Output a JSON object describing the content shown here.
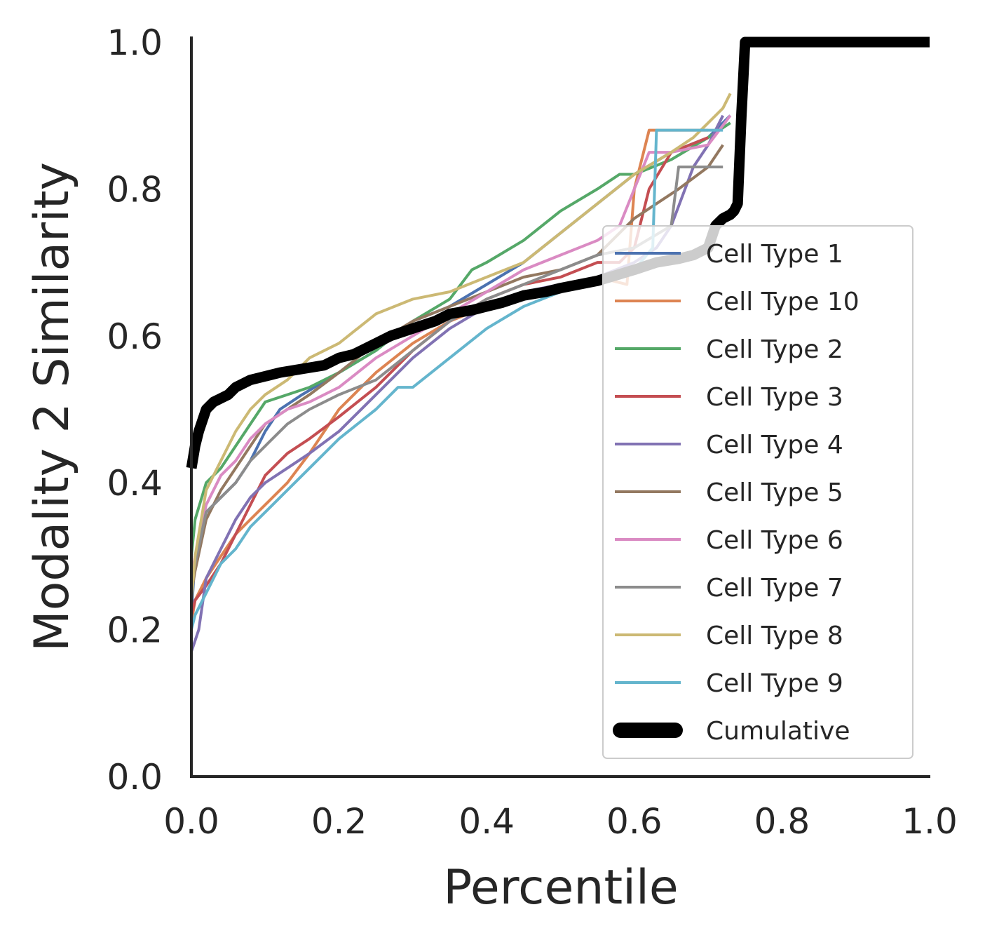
{
  "chart_data": {
    "type": "line",
    "title": "",
    "xlabel": "Percentile",
    "ylabel": "Modality 2 Similarity",
    "xlim": [
      0,
      1
    ],
    "ylim": [
      0,
      1
    ],
    "x_ticks": [
      "0.0",
      "0.2",
      "0.4",
      "0.6",
      "0.8",
      "1.0"
    ],
    "y_ticks": [
      "0.0",
      "0.2",
      "0.4",
      "0.6",
      "0.8",
      "1.0"
    ],
    "grid": false,
    "legend_position": "lower-right",
    "series": [
      {
        "name": "Cell Type 1",
        "color": "#4c72b0",
        "x": [
          0,
          0.005,
          0.02,
          0.04,
          0.06,
          0.08,
          0.1,
          0.12,
          0.15,
          0.2,
          0.25,
          0.3,
          0.35,
          0.4,
          0.45,
          0.5,
          0.55,
          0.6,
          0.65,
          0.7,
          0.73
        ],
        "y": [
          0.22,
          0.3,
          0.36,
          0.38,
          0.4,
          0.43,
          0.47,
          0.5,
          0.52,
          0.55,
          0.58,
          0.62,
          0.64,
          0.67,
          0.7,
          0.74,
          0.78,
          0.82,
          0.85,
          0.87,
          0.9
        ]
      },
      {
        "name": "Cell Type 10",
        "color": "#dd8452",
        "x": [
          0,
          0.005,
          0.02,
          0.04,
          0.06,
          0.08,
          0.1,
          0.13,
          0.16,
          0.2,
          0.25,
          0.3,
          0.35,
          0.4,
          0.45,
          0.5,
          0.55,
          0.59,
          0.6,
          0.62,
          0.63,
          0.65,
          0.7
        ],
        "y": [
          0.21,
          0.24,
          0.27,
          0.3,
          0.33,
          0.35,
          0.37,
          0.4,
          0.44,
          0.5,
          0.55,
          0.59,
          0.62,
          0.64,
          0.65,
          0.67,
          0.68,
          0.67,
          0.8,
          0.88,
          0.88,
          0.88,
          0.88
        ]
      },
      {
        "name": "Cell Type 2",
        "color": "#55a868",
        "x": [
          0,
          0.005,
          0.02,
          0.04,
          0.06,
          0.08,
          0.1,
          0.13,
          0.16,
          0.2,
          0.25,
          0.3,
          0.35,
          0.38,
          0.4,
          0.45,
          0.5,
          0.55,
          0.58,
          0.6,
          0.65,
          0.7,
          0.73
        ],
        "y": [
          0.3,
          0.35,
          0.4,
          0.42,
          0.45,
          0.48,
          0.51,
          0.52,
          0.53,
          0.55,
          0.58,
          0.62,
          0.65,
          0.69,
          0.7,
          0.73,
          0.77,
          0.8,
          0.82,
          0.82,
          0.84,
          0.87,
          0.89
        ]
      },
      {
        "name": "Cell Type 3",
        "color": "#c44e52",
        "x": [
          0,
          0.005,
          0.02,
          0.04,
          0.06,
          0.08,
          0.1,
          0.13,
          0.16,
          0.2,
          0.25,
          0.3,
          0.35,
          0.4,
          0.45,
          0.5,
          0.55,
          0.58,
          0.6,
          0.62,
          0.65,
          0.7
        ],
        "y": [
          0.22,
          0.24,
          0.26,
          0.29,
          0.33,
          0.37,
          0.41,
          0.44,
          0.46,
          0.49,
          0.53,
          0.58,
          0.62,
          0.65,
          0.67,
          0.68,
          0.7,
          0.7,
          0.72,
          0.8,
          0.85,
          0.87
        ]
      },
      {
        "name": "Cell Type 4",
        "color": "#8172b3",
        "x": [
          0,
          0.01,
          0.02,
          0.04,
          0.06,
          0.08,
          0.1,
          0.13,
          0.16,
          0.2,
          0.25,
          0.3,
          0.35,
          0.4,
          0.45,
          0.5,
          0.55,
          0.6,
          0.63,
          0.65,
          0.68,
          0.7,
          0.72
        ],
        "y": [
          0.17,
          0.2,
          0.27,
          0.31,
          0.35,
          0.38,
          0.4,
          0.42,
          0.44,
          0.47,
          0.52,
          0.57,
          0.61,
          0.64,
          0.66,
          0.67,
          0.68,
          0.7,
          0.72,
          0.75,
          0.83,
          0.86,
          0.9
        ]
      },
      {
        "name": "Cell Type 5",
        "color": "#937860",
        "x": [
          0,
          0.005,
          0.02,
          0.04,
          0.06,
          0.08,
          0.1,
          0.13,
          0.16,
          0.2,
          0.25,
          0.3,
          0.35,
          0.4,
          0.45,
          0.5,
          0.55,
          0.58,
          0.6,
          0.63,
          0.66,
          0.7,
          0.72
        ],
        "y": [
          0.25,
          0.28,
          0.35,
          0.39,
          0.42,
          0.45,
          0.48,
          0.5,
          0.52,
          0.55,
          0.59,
          0.62,
          0.64,
          0.66,
          0.68,
          0.69,
          0.71,
          0.74,
          0.76,
          0.78,
          0.8,
          0.83,
          0.86
        ]
      },
      {
        "name": "Cell Type 6",
        "color": "#da8bc3",
        "x": [
          0,
          0.005,
          0.02,
          0.04,
          0.06,
          0.08,
          0.1,
          0.13,
          0.16,
          0.2,
          0.25,
          0.3,
          0.35,
          0.4,
          0.45,
          0.5,
          0.55,
          0.58,
          0.6,
          0.62,
          0.65,
          0.7,
          0.73
        ],
        "y": [
          0.27,
          0.3,
          0.37,
          0.41,
          0.43,
          0.46,
          0.48,
          0.5,
          0.51,
          0.53,
          0.57,
          0.6,
          0.63,
          0.66,
          0.69,
          0.71,
          0.73,
          0.75,
          0.8,
          0.85,
          0.85,
          0.86,
          0.9
        ]
      },
      {
        "name": "Cell Type 7",
        "color": "#8c8c8c",
        "x": [
          0,
          0.005,
          0.02,
          0.04,
          0.06,
          0.08,
          0.1,
          0.13,
          0.16,
          0.2,
          0.25,
          0.3,
          0.35,
          0.4,
          0.45,
          0.5,
          0.55,
          0.6,
          0.65,
          0.66,
          0.7,
          0.72
        ],
        "y": [
          0.26,
          0.29,
          0.36,
          0.38,
          0.4,
          0.43,
          0.45,
          0.48,
          0.5,
          0.52,
          0.54,
          0.58,
          0.62,
          0.65,
          0.67,
          0.69,
          0.71,
          0.72,
          0.75,
          0.83,
          0.83,
          0.83
        ]
      },
      {
        "name": "Cell Type 8",
        "color": "#ccb974",
        "x": [
          0,
          0.005,
          0.02,
          0.04,
          0.06,
          0.08,
          0.1,
          0.13,
          0.16,
          0.2,
          0.25,
          0.3,
          0.35,
          0.4,
          0.45,
          0.5,
          0.55,
          0.6,
          0.65,
          0.68,
          0.7,
          0.72,
          0.73
        ],
        "y": [
          0.24,
          0.3,
          0.39,
          0.43,
          0.47,
          0.5,
          0.52,
          0.54,
          0.57,
          0.59,
          0.63,
          0.65,
          0.66,
          0.68,
          0.7,
          0.74,
          0.78,
          0.82,
          0.85,
          0.87,
          0.89,
          0.91,
          0.93
        ]
      },
      {
        "name": "Cell Type 9",
        "color": "#64b5cd",
        "x": [
          0,
          0.005,
          0.02,
          0.04,
          0.06,
          0.08,
          0.1,
          0.13,
          0.16,
          0.2,
          0.25,
          0.28,
          0.3,
          0.35,
          0.4,
          0.45,
          0.5,
          0.55,
          0.6,
          0.625,
          0.63,
          0.65,
          0.7,
          0.72
        ],
        "y": [
          0.2,
          0.22,
          0.25,
          0.29,
          0.31,
          0.34,
          0.36,
          0.39,
          0.42,
          0.46,
          0.5,
          0.53,
          0.53,
          0.57,
          0.61,
          0.64,
          0.66,
          0.68,
          0.69,
          0.72,
          0.88,
          0.88,
          0.88,
          0.88
        ]
      },
      {
        "name": "Cumulative",
        "color": "#000000",
        "x": [
          0,
          0.005,
          0.01,
          0.02,
          0.03,
          0.04,
          0.05,
          0.06,
          0.08,
          0.1,
          0.12,
          0.15,
          0.18,
          0.2,
          0.22,
          0.25,
          0.27,
          0.3,
          0.33,
          0.35,
          0.38,
          0.4,
          0.42,
          0.45,
          0.48,
          0.5,
          0.55,
          0.6,
          0.63,
          0.66,
          0.68,
          0.7,
          0.71,
          0.72,
          0.73,
          0.735,
          0.74,
          0.745,
          0.75,
          0.8,
          0.9,
          1.0
        ],
        "y": [
          0.42,
          0.45,
          0.47,
          0.5,
          0.51,
          0.515,
          0.52,
          0.53,
          0.54,
          0.545,
          0.55,
          0.555,
          0.56,
          0.57,
          0.575,
          0.59,
          0.6,
          0.61,
          0.62,
          0.63,
          0.635,
          0.64,
          0.645,
          0.655,
          0.66,
          0.665,
          0.675,
          0.69,
          0.7,
          0.705,
          0.71,
          0.72,
          0.75,
          0.76,
          0.765,
          0.77,
          0.78,
          0.9,
          1.0,
          1.0,
          1.0,
          1.0
        ]
      }
    ]
  }
}
